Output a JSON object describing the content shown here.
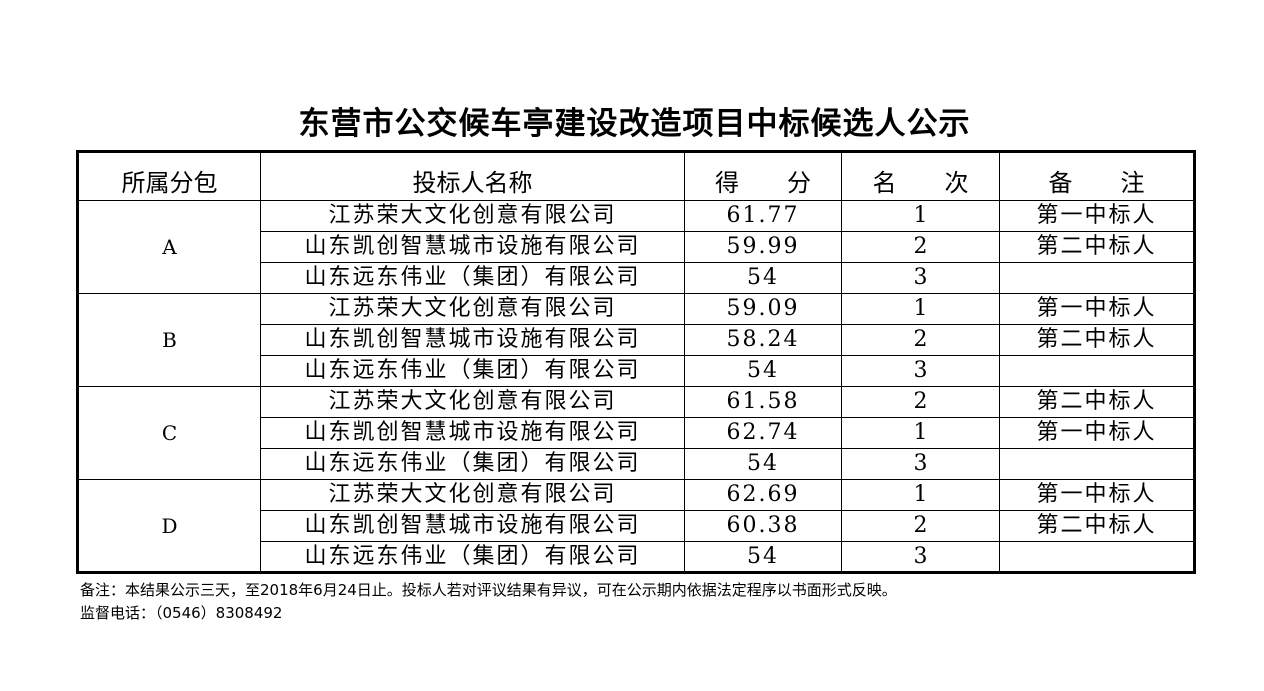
{
  "title": "东营市公交候车亭建设改造项目中标候选人公示",
  "headers": [
    "所属分包",
    "投标人名称",
    "得　　分",
    "名　　次",
    "备　　注"
  ],
  "packages": [
    {
      "name": "A",
      "rows": [
        {
          "bidder": "江苏荣大文化创意有限公司",
          "score": "61.77",
          "rank": "1",
          "note": "第一中标人"
        },
        {
          "bidder": "山东凯创智慧城市设施有限公司",
          "score": "59.99",
          "rank": "2",
          "note": "第二中标人"
        },
        {
          "bidder": "山东远东伟业（集团）有限公司",
          "score": "54",
          "rank": "3",
          "note": ""
        }
      ]
    },
    {
      "name": "B",
      "rows": [
        {
          "bidder": "江苏荣大文化创意有限公司",
          "score": "59.09",
          "rank": "1",
          "note": "第一中标人"
        },
        {
          "bidder": "山东凯创智慧城市设施有限公司",
          "score": "58.24",
          "rank": "2",
          "note": "第二中标人"
        },
        {
          "bidder": "山东远东伟业（集团）有限公司",
          "score": "54",
          "rank": "3",
          "note": ""
        }
      ]
    },
    {
      "name": "C",
      "rows": [
        {
          "bidder": "江苏荣大文化创意有限公司",
          "score": "61.58",
          "rank": "2",
          "note": "第二中标人"
        },
        {
          "bidder": "山东凯创智慧城市设施有限公司",
          "score": "62.74",
          "rank": "1",
          "note": "第一中标人"
        },
        {
          "bidder": "山东远东伟业（集团）有限公司",
          "score": "54",
          "rank": "3",
          "note": ""
        }
      ]
    },
    {
      "name": "D",
      "rows": [
        {
          "bidder": "江苏荣大文化创意有限公司",
          "score": "62.69",
          "rank": "1",
          "note": "第一中标人"
        },
        {
          "bidder": "山东凯创智慧城市设施有限公司",
          "score": "60.38",
          "rank": "2",
          "note": "第二中标人"
        },
        {
          "bidder": "山东远东伟业（集团）有限公司",
          "score": "54",
          "rank": "3",
          "note": ""
        }
      ]
    }
  ],
  "notes": {
    "remark": "备注：本结果公示三天，至2018年6月24日止。投标人若对评议结果有异议，可在公示期内依据法定程序以书面形式反映。",
    "phone": "监督电话：（0546）8308492"
  }
}
